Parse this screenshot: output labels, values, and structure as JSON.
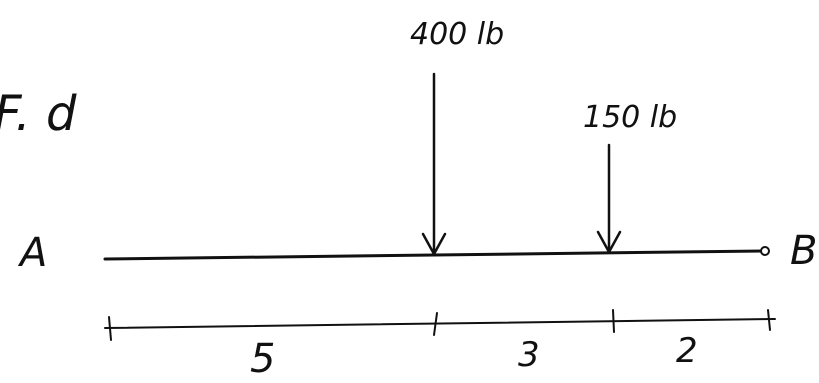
{
  "diagram": {
    "fragment_label": "F. d",
    "left_end_label": "A",
    "right_end_label": "B",
    "loads": [
      {
        "label": "400 lb"
      },
      {
        "label": "150 lb"
      }
    ],
    "segments": [
      {
        "label": "5"
      },
      {
        "label": "3"
      },
      {
        "label": "2"
      }
    ]
  }
}
